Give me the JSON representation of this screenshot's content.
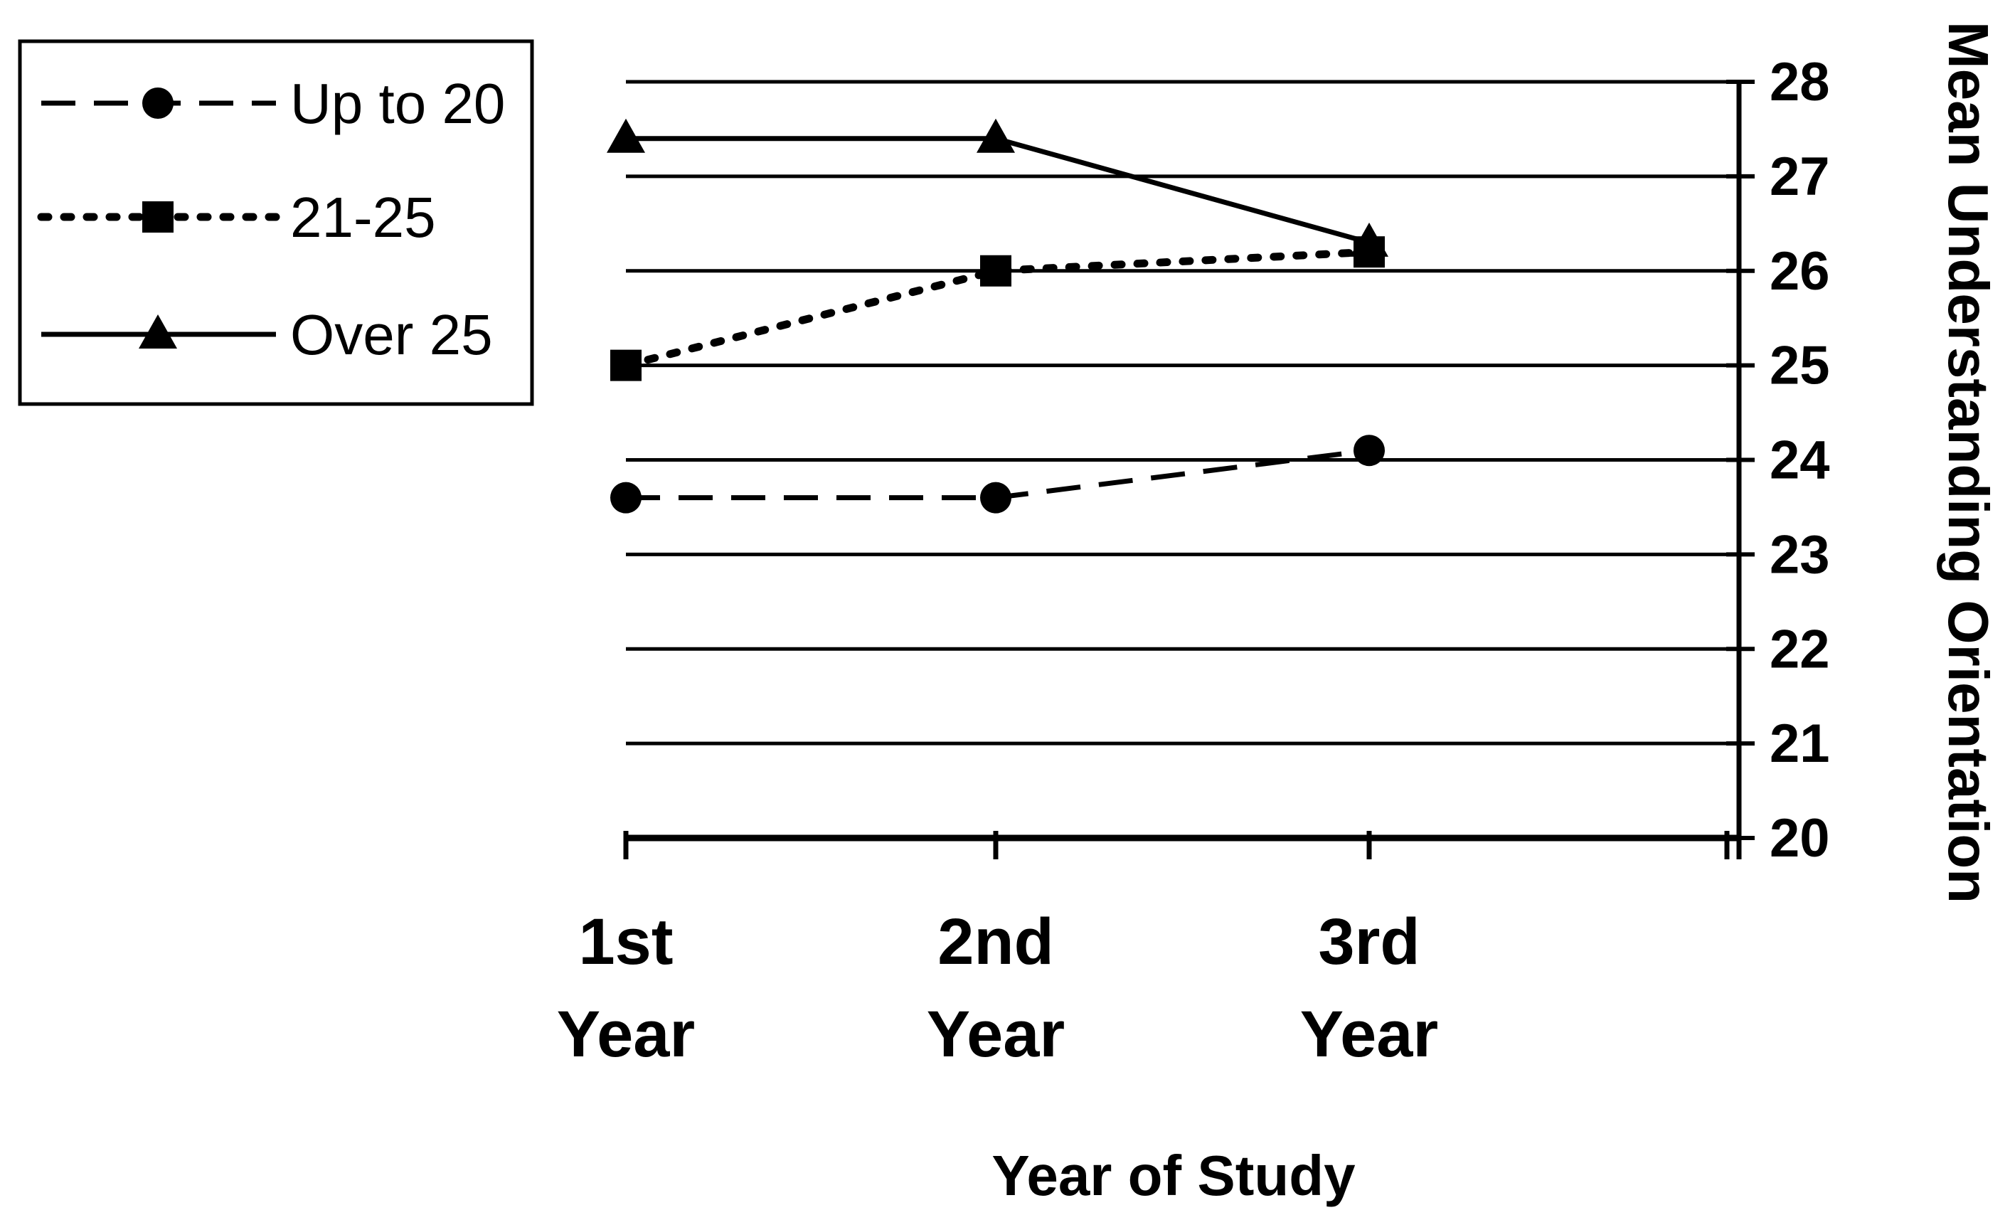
{
  "chart_data": {
    "type": "line",
    "categories": [
      [
        "1st",
        "Year"
      ],
      [
        "2nd",
        "Year"
      ],
      [
        "3rd",
        "Year"
      ]
    ],
    "series": [
      {
        "name": "Up to 20",
        "values": [
          23.6,
          23.6,
          24.1
        ],
        "style": "dashed",
        "marker": "circle"
      },
      {
        "name": "21-25",
        "values": [
          25.0,
          26.0,
          26.2
        ],
        "style": "dotted",
        "marker": "square"
      },
      {
        "name": "Over 25",
        "values": [
          27.4,
          27.4,
          26.3
        ],
        "style": "solid",
        "marker": "triangle"
      }
    ],
    "xlabel": "Year of Study",
    "ylabel": "Mean Understanding Orientation",
    "ylim": [
      20,
      28
    ],
    "yticks": [
      20,
      21,
      22,
      23,
      24,
      25,
      26,
      27,
      28
    ],
    "y_axis_side": "right",
    "grid": true,
    "legend_position": "top-left",
    "colors": {
      "line": "#000000",
      "background": "#ffffff"
    }
  }
}
